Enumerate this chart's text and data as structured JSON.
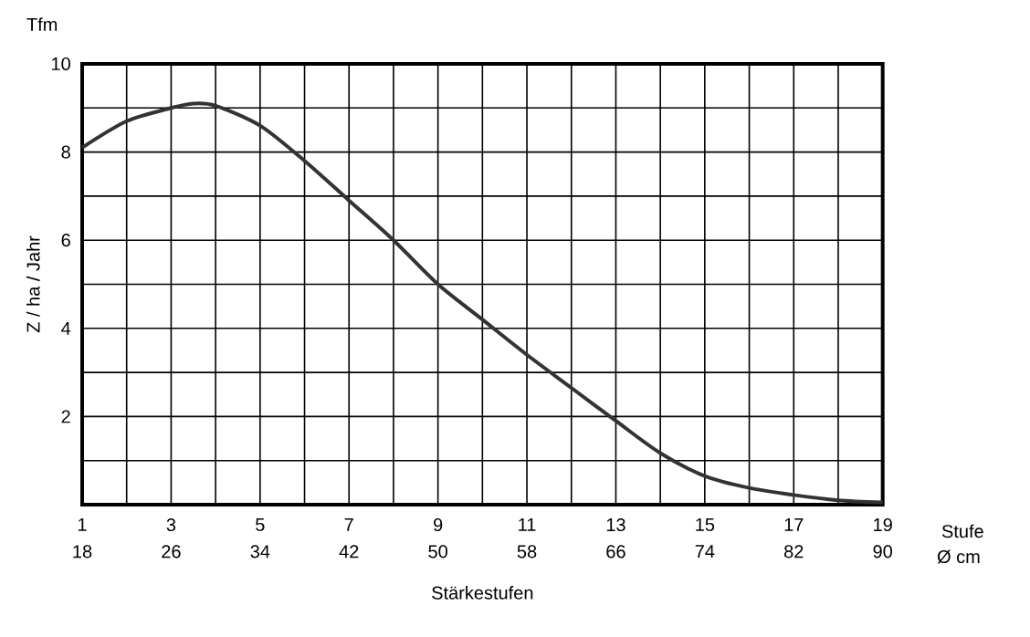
{
  "chart_data": {
    "type": "line",
    "xlabel": "Stärkestufen",
    "ylabel": "Z / ha / Jahr",
    "x2label": "Ø cm",
    "annotations": [
      "Tfm",
      "Stufe"
    ],
    "x": [
      1,
      2,
      3,
      3.5,
      4,
      5,
      6,
      7,
      8,
      9,
      10,
      11,
      12,
      13,
      14,
      15,
      16,
      17,
      18,
      19
    ],
    "series": [
      {
        "color": "#333333",
        "values": [
          8.1,
          8.7,
          9.0,
          9.1,
          9.05,
          8.6,
          7.8,
          6.9,
          6.0,
          5.0,
          4.2,
          3.4,
          2.65,
          1.9,
          1.17,
          0.65,
          0.38,
          0.22,
          0.1,
          0.05
        ]
      }
    ],
    "xlim": [
      1,
      19
    ],
    "ylim": [
      0,
      10
    ],
    "xticks": [
      1,
      {
        "value": 2,
        "label": null
      },
      3,
      {
        "value": 4,
        "label": null
      },
      5,
      {
        "value": 6,
        "label": null
      },
      7,
      {
        "value": 8,
        "label": null
      },
      9,
      {
        "value": 10,
        "label": null
      },
      11,
      {
        "value": 12,
        "label": null
      },
      13,
      {
        "value": 14,
        "label": null
      },
      15,
      {
        "value": 16,
        "label": null
      },
      17,
      {
        "value": 18,
        "label": null
      },
      19
    ],
    "yticks": [
      {
        "value": 0,
        "label": null
      },
      {
        "value": 1,
        "label": null
      },
      2,
      {
        "value": 3,
        "label": null
      },
      4,
      {
        "value": 5,
        "label": null
      },
      6,
      {
        "value": 7,
        "label": null
      },
      8,
      {
        "value": 9,
        "label": null
      },
      10
    ],
    "x2lim": [
      18,
      90
    ],
    "x2ticks": [
      18,
      26,
      34,
      42,
      50,
      58,
      66,
      74,
      82,
      90
    ],
    "grid": true,
    "marker": "none",
    "line_style": "solid"
  }
}
